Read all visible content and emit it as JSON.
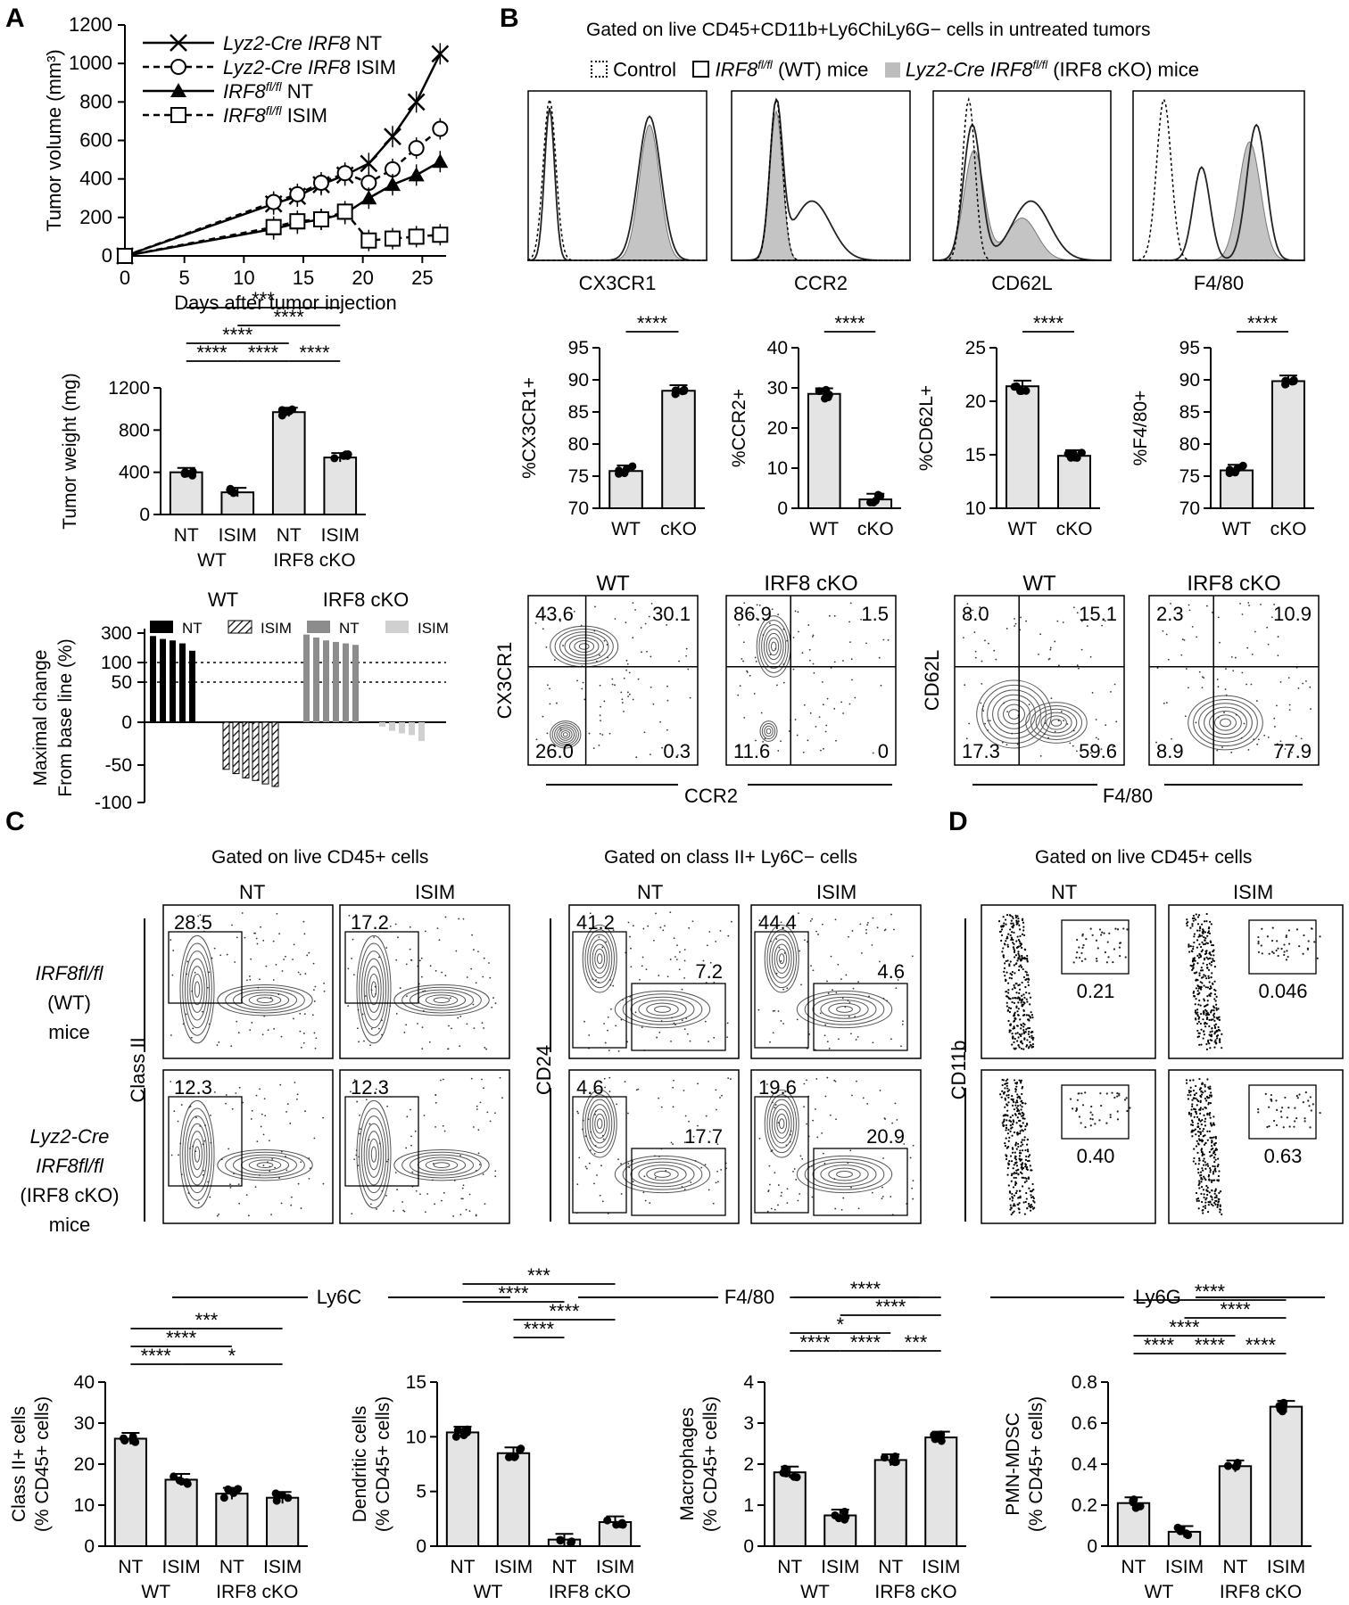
{
  "panel_letters": {
    "A": "A",
    "B": "B",
    "C": "C",
    "D": "D"
  },
  "chart_data": [
    {
      "id": "A1",
      "type": "line",
      "title": "",
      "xlabel": "Days after tumor injection",
      "ylabel": "Tumor volume (mm³)",
      "xlim": [
        0,
        27
      ],
      "ylim": [
        0,
        1200
      ],
      "xticks": [
        "0",
        "5",
        "10",
        "15",
        "20",
        "25"
      ],
      "yticks": [
        "0",
        "200",
        "400",
        "600",
        "800",
        "1000",
        "1200"
      ],
      "series": [
        {
          "name": "Lyz2-Cre IRF8 NT",
          "legend_italic": "Lyz2-Cre IRF8",
          "legend_suffix": " NT",
          "marker": "x",
          "dash": false,
          "x": [
            0,
            12.5,
            14.5,
            16.5,
            18.5,
            20.5,
            22.5,
            24.5,
            26.5
          ],
          "y": [
            0,
            270,
            310,
            370,
            420,
            480,
            620,
            800,
            1050
          ]
        },
        {
          "name": "Lyz2-Cre IRF8 ISIM",
          "legend_italic": "Lyz2-Cre IRF8",
          "legend_suffix": " ISIM",
          "marker": "circle",
          "dash": true,
          "x": [
            0,
            12.5,
            14.5,
            16.5,
            18.5,
            20.5,
            22.5,
            24.5,
            26.5
          ],
          "y": [
            0,
            280,
            320,
            380,
            430,
            380,
            450,
            560,
            660
          ]
        },
        {
          "name": "IRF8fl/fl NT",
          "legend_italic": "IRF8",
          "legend_sup": "fl/fl",
          "legend_suffix": " NT",
          "marker": "triangle",
          "dash": false,
          "x": [
            0,
            12.5,
            14.5,
            16.5,
            18.5,
            20.5,
            22.5,
            24.5,
            26.5
          ],
          "y": [
            0,
            140,
            170,
            190,
            220,
            300,
            370,
            420,
            490
          ]
        },
        {
          "name": "IRF8fl/fl ISIM",
          "legend_italic": "IRF8",
          "legend_sup": "fl/fl",
          "legend_suffix": " ISIM",
          "marker": "square",
          "dash": true,
          "x": [
            0,
            12.5,
            14.5,
            16.5,
            18.5,
            20.5,
            22.5,
            24.5,
            26.5
          ],
          "y": [
            0,
            150,
            180,
            190,
            230,
            80,
            90,
            100,
            110
          ]
        }
      ]
    },
    {
      "id": "A2",
      "type": "bar",
      "ylabel": "Tumor weight (mg)",
      "ylim": [
        0,
        1200
      ],
      "yticks": [
        "0",
        "400",
        "800",
        "1200"
      ],
      "categories": [
        "NT",
        "ISIM",
        "NT",
        "ISIM"
      ],
      "groups": [
        "WT",
        "IRF8 cKO"
      ],
      "values": [
        400,
        210,
        970,
        540
      ],
      "sig": [
        {
          "a": 0,
          "b": 1,
          "t": "****"
        },
        {
          "a": 1,
          "b": 2,
          "t": "****"
        },
        {
          "a": 2,
          "b": 3,
          "t": "****"
        },
        {
          "a": 0,
          "b": 2,
          "t": "****"
        },
        {
          "a": 1,
          "b": 3,
          "t": "****"
        },
        {
          "a": 0,
          "b": 3,
          "t": "***"
        }
      ]
    },
    {
      "id": "A3",
      "type": "bar",
      "ylabel_lines": [
        "Maximal change",
        "From base line (%)"
      ],
      "yticks": [
        "300",
        "100",
        "50",
        "0",
        "-50",
        "-100"
      ],
      "group_labels": [
        "WT",
        "IRF8 cKO"
      ],
      "legend": [
        {
          "name": "NT",
          "style": "black"
        },
        {
          "name": "ISIM",
          "style": "hatch"
        },
        {
          "name": "NT",
          "style": "darkgray"
        },
        {
          "name": "ISIM",
          "style": "lightgray"
        }
      ],
      "series": [
        {
          "name": "WT NT",
          "values": [
            280,
            260,
            250,
            230,
            180
          ]
        },
        {
          "name": "WT ISIM",
          "values": [
            -55,
            -60,
            -65,
            -68,
            -72,
            -75
          ]
        },
        {
          "name": "IRF8 cKO NT",
          "values": [
            290,
            270,
            250,
            240,
            230,
            220
          ]
        },
        {
          "name": "IRF8 cKO ISIM",
          "values": [
            -5,
            -10,
            -13,
            -15,
            -22
          ]
        }
      ]
    },
    {
      "id": "B2a",
      "type": "bar",
      "ylabel": "%CX3CR1+",
      "ylim": [
        70,
        95
      ],
      "yticks": [
        "70",
        "75",
        "80",
        "85",
        "90",
        "95"
      ],
      "categories": [
        "WT",
        "cKO"
      ],
      "values": [
        75.8,
        88.3
      ],
      "sig": [
        {
          "a": 0,
          "b": 1,
          "t": "****"
        }
      ]
    },
    {
      "id": "B2b",
      "type": "bar",
      "ylabel": "%CCR2+",
      "ylim": [
        0,
        40
      ],
      "yticks": [
        "0",
        "10",
        "20",
        "30",
        "40"
      ],
      "categories": [
        "WT",
        "cKO"
      ],
      "values": [
        28.5,
        2.2
      ],
      "sig": [
        {
          "a": 0,
          "b": 1,
          "t": "****"
        }
      ]
    },
    {
      "id": "B2c",
      "type": "bar",
      "ylabel": "%CD62L+",
      "ylim": [
        10,
        25
      ],
      "yticks": [
        "10",
        "15",
        "20",
        "25"
      ],
      "categories": [
        "WT",
        "cKO"
      ],
      "values": [
        21.4,
        14.9
      ],
      "sig": [
        {
          "a": 0,
          "b": 1,
          "t": "****"
        }
      ]
    },
    {
      "id": "B2d",
      "type": "bar",
      "ylabel": "%F4/80+",
      "ylim": [
        70,
        95
      ],
      "yticks": [
        "70",
        "75",
        "80",
        "85",
        "90",
        "95"
      ],
      "categories": [
        "WT",
        "cKO"
      ],
      "values": [
        75.9,
        89.8
      ],
      "sig": [
        {
          "a": 0,
          "b": 1,
          "t": "****"
        }
      ]
    },
    {
      "id": "C4a",
      "type": "bar",
      "ylabel_lines": [
        "Class II+ cells",
        "(% CD45+ cells)"
      ],
      "ylim": [
        0,
        40
      ],
      "yticks": [
        "0",
        "10",
        "20",
        "30",
        "40"
      ],
      "categories": [
        "NT",
        "ISIM",
        "NT",
        "ISIM"
      ],
      "groups": [
        "WT",
        "IRF8 cKO"
      ],
      "values": [
        26.2,
        16.2,
        12.8,
        11.8
      ],
      "sig": [
        {
          "a": 0,
          "b": 1,
          "t": "****"
        },
        {
          "a": 0,
          "b": 2,
          "t": "****"
        },
        {
          "a": 0,
          "b": 3,
          "t": "***"
        },
        {
          "a": 1,
          "b": 3,
          "t": "*"
        }
      ]
    },
    {
      "id": "C4b",
      "type": "bar",
      "ylabel_lines": [
        "Dendritic cells",
        "(% CD45+ cells)"
      ],
      "ylim": [
        0,
        15
      ],
      "yticks": [
        "0",
        "5",
        "10",
        "15"
      ],
      "categories": [
        "NT",
        "ISIM",
        "NT",
        "ISIM"
      ],
      "groups": [
        "WT",
        "IRF8 cKO"
      ],
      "values": [
        10.4,
        8.5,
        0.6,
        2.2
      ],
      "sig": [
        {
          "a": 1,
          "b": 2,
          "t": "****"
        },
        {
          "a": 1,
          "b": 3,
          "t": "****"
        },
        {
          "a": 0,
          "b": 2,
          "t": "****"
        },
        {
          "a": 0,
          "b": 3,
          "t": "***"
        }
      ]
    },
    {
      "id": "C4c",
      "type": "bar",
      "ylabel_lines": [
        "Macrophages",
        "(% CD45+ cells)"
      ],
      "ylim": [
        0,
        4
      ],
      "yticks": [
        "0",
        "1",
        "2",
        "3",
        "4"
      ],
      "categories": [
        "NT",
        "ISIM",
        "NT",
        "ISIM"
      ],
      "groups": [
        "WT",
        "IRF8 cKO"
      ],
      "values": [
        1.8,
        0.75,
        2.1,
        2.65
      ],
      "sig": [
        {
          "a": 0,
          "b": 1,
          "t": "****"
        },
        {
          "a": 1,
          "b": 2,
          "t": "****"
        },
        {
          "a": 2,
          "b": 3,
          "t": "***"
        },
        {
          "a": 0,
          "b": 2,
          "t": "*"
        },
        {
          "a": 1,
          "b": 3,
          "t": "****"
        },
        {
          "a": 0,
          "b": 3,
          "t": "****"
        }
      ]
    },
    {
      "id": "D2",
      "type": "bar",
      "ylabel_lines": [
        "PMN-MDSC",
        "(% CD45+ cells)"
      ],
      "ylim": [
        0,
        0.8
      ],
      "yticks": [
        "0",
        "0.2",
        "0.4",
        "0.6",
        "0.8"
      ],
      "categories": [
        "NT",
        "ISIM",
        "NT",
        "ISIM"
      ],
      "groups": [
        "WT",
        "IRF8 cKO"
      ],
      "values": [
        0.21,
        0.07,
        0.39,
        0.68
      ],
      "sig": [
        {
          "a": 0,
          "b": 1,
          "t": "****"
        },
        {
          "a": 1,
          "b": 2,
          "t": "****"
        },
        {
          "a": 2,
          "b": 3,
          "t": "****"
        },
        {
          "a": 0,
          "b": 2,
          "t": "****"
        },
        {
          "a": 1,
          "b": 3,
          "t": "****"
        },
        {
          "a": 0,
          "b": 3,
          "t": "****"
        }
      ]
    }
  ],
  "panelB": {
    "title": "Gated on live CD45+CD11b+Ly6ChiLy6G− cells in untreated tumors",
    "legend_control": "Control",
    "legend_wt_italic": "IRF8",
    "legend_wt_sup": "fl/fl",
    "legend_wt_rest": " (WT) mice",
    "legend_cko_italic": "Lyz2-Cre IRF8",
    "legend_cko_sup": "fl/fl",
    "legend_cko_rest": " (IRF8 cKO) mice",
    "histograms": [
      "CX3CR1",
      "CCR2",
      "CD62L",
      "F4/80"
    ],
    "contour": {
      "group_titles": [
        "WT",
        "IRF8 cKO",
        "WT",
        "IRF8 cKO"
      ],
      "left_ylabel": "CX3CR1",
      "left_xlabel": "CCR2",
      "right_ylabel": "CD62L",
      "right_xlabel": "F4/80",
      "quadrants": [
        [
          "43.6",
          "30.1",
          "26.0",
          "0.3"
        ],
        [
          "86.9",
          "1.5",
          "11.6",
          "0"
        ],
        [
          "8.0",
          "15.1",
          "17.3",
          "59.6"
        ],
        [
          "2.3",
          "10.9",
          "8.9",
          "77.9"
        ]
      ]
    }
  },
  "panelC": {
    "title_left": "Gated on live CD45+ cells",
    "title_right": "Gated on class II+ Ly6C− cells",
    "col_nt": "NT",
    "col_isim": "ISIM",
    "row1_lines": [
      "IRF8fl/fl",
      "(WT)",
      "mice"
    ],
    "row2_lines": [
      "Lyz2-Cre",
      "IRF8fl/fl",
      "(IRF8 cKO)",
      "mice"
    ],
    "ylabel_left": "Class II",
    "xlabel_left": "Ly6C",
    "ylabel_right": "CD24",
    "xlabel_right": "F4/80",
    "gates_left": [
      "28.5",
      "17.2",
      "12.3",
      "12.3"
    ],
    "gates_right": [
      [
        "41.2",
        "7.2"
      ],
      [
        "44.4",
        "4.6"
      ],
      [
        "4.6",
        "17.7"
      ],
      [
        "19.6",
        "20.9"
      ]
    ]
  },
  "panelD": {
    "title": "Gated on live CD45+ cells",
    "col_nt": "NT",
    "col_isim": "ISIM",
    "ylabel": "CD11b",
    "xlabel": "Ly6G",
    "gates": [
      "0.21",
      "0.046",
      "0.40",
      "0.63"
    ]
  }
}
